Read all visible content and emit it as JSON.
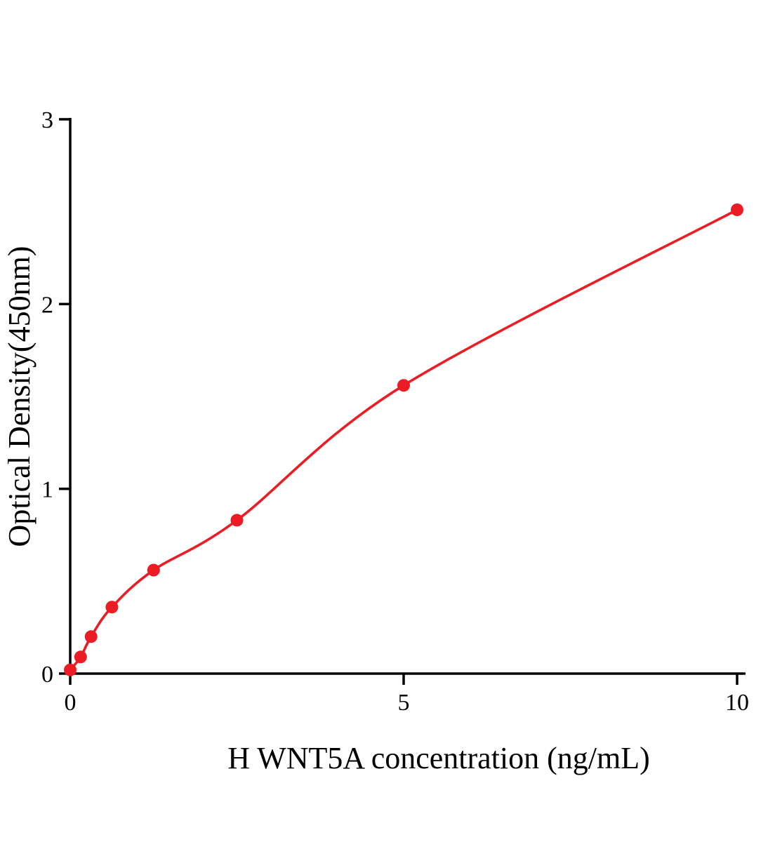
{
  "chart_data": {
    "type": "scatter",
    "title": "",
    "xlabel": "H WNT5A concentration (ng/mL)",
    "ylabel": "Optical Density(450nm)",
    "x": [
      0,
      0.156,
      0.3125,
      0.625,
      1.25,
      2.5,
      5,
      10
    ],
    "y": [
      0.02,
      0.09,
      0.2,
      0.36,
      0.56,
      0.83,
      1.56,
      2.51
    ],
    "xlim": [
      0,
      10.2
    ],
    "ylim": [
      0,
      3
    ],
    "x_ticks": [
      "0",
      "5",
      "10"
    ],
    "x_tick_values": [
      0,
      5,
      10
    ],
    "y_ticks": [
      "0",
      "1",
      "2",
      "3"
    ],
    "y_tick_values": [
      0,
      1,
      2,
      3
    ],
    "grid": false,
    "legend": "none",
    "curve_type": "smooth fitted standard curve through points",
    "colors": {
      "point": "#ec1c24",
      "line": "#ec1c24",
      "axis": "#000000",
      "background": "#ffffff"
    }
  }
}
